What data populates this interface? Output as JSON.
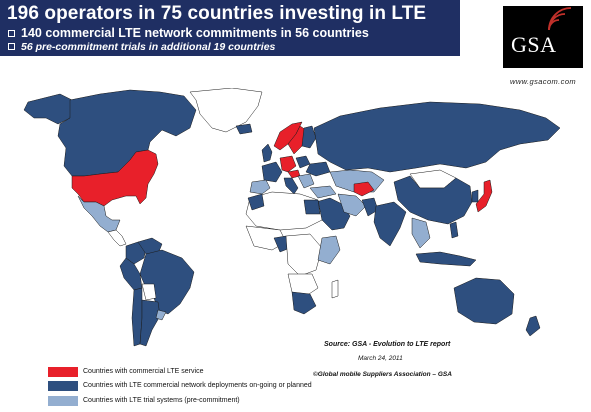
{
  "header": {
    "title": "196 operators in 75 countries investing in LTE",
    "line1": "140 commercial LTE network commitments in 56 countries",
    "line2": "56 pre-commitment trials in additional 19 countries"
  },
  "logo": {
    "text": "GSA",
    "url": "www.gsacom.com",
    "icon": "signal-waves-icon"
  },
  "map": {
    "source": "Source: GSA - Evolution to LTE report",
    "date": "March 24, 2011",
    "copyright": "©Global mobile Suppliers Association – GSA"
  },
  "legend": [
    {
      "label": "Countries with commercial LTE service",
      "color": "#e8202a"
    },
    {
      "label": "Countries with LTE commercial network deployments on-going or planned",
      "color": "#2e4f7f"
    },
    {
      "label": "Countries with LTE trial systems  (pre-commitment)",
      "color": "#93aed0"
    }
  ],
  "colors": {
    "banner": "#1f2f63",
    "commercial": "#e8202a",
    "planned": "#2e4f7f",
    "trial": "#93aed0",
    "other": "#ffffff"
  }
}
